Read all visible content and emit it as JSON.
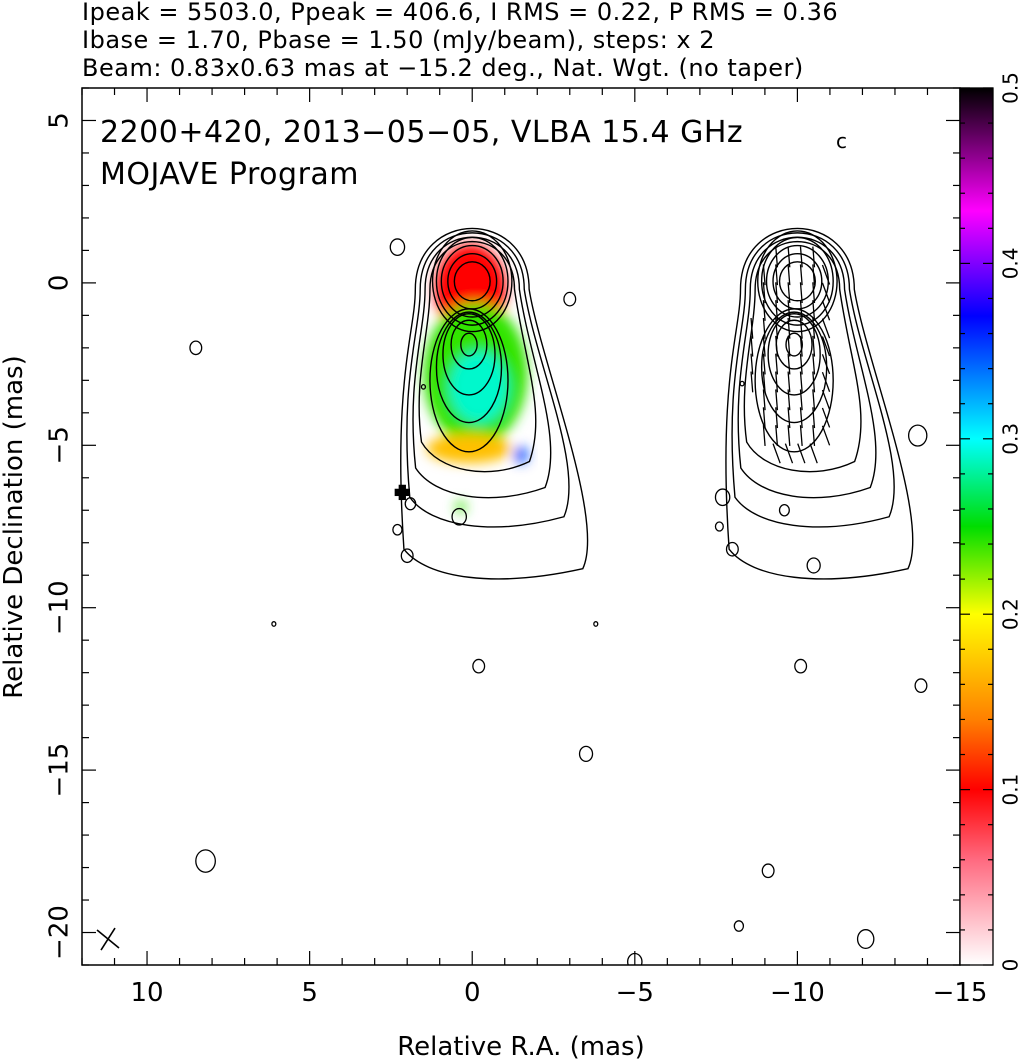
{
  "header": {
    "line1": "Ipeak = 5503.0, Ppeak = 406.6, I RMS = 0.22, P RMS = 0.36",
    "line2": "Ibase = 1.70, Pbase = 1.50 (mJy/beam), steps: x 2",
    "line3": "Beam: 0.83x0.63 mas at −15.2 deg., Nat. Wgt. (no taper)"
  },
  "plot": {
    "title_line1": "2200+420, 2013−05−05, VLBA 15.4 GHz",
    "title_suffix": "c",
    "title_line2": "MOJAVE Program"
  },
  "chart_data": {
    "type": "heatmap",
    "xlabel": "Relative R.A. (mas)",
    "ylabel": "Relative Declination (mas)",
    "xlim": [
      12,
      -15
    ],
    "ylim": [
      -21,
      6
    ],
    "x_ticks": [
      10,
      5,
      0,
      -5,
      -10,
      -15
    ],
    "x_tick_labels": [
      "10",
      "5",
      "0",
      "−5",
      "−10",
      "−15"
    ],
    "y_ticks": [
      5,
      0,
      -5,
      -10,
      -15,
      -20
    ],
    "y_tick_labels": [
      "5",
      "0",
      "−5",
      "−10",
      "−15",
      "−20"
    ],
    "colorbar": {
      "range": [
        0,
        0.5
      ],
      "ticks": [
        0,
        0.1,
        0.2,
        0.3,
        0.4,
        0.5
      ],
      "tick_labels": [
        "0",
        "0.1",
        "0.2",
        "0.3",
        "0.4",
        "0.5"
      ],
      "stops": [
        {
          "v": 0.0,
          "color": "#ffffff"
        },
        {
          "v": 0.06,
          "color": "#ff6a80"
        },
        {
          "v": 0.1,
          "color": "#ff0000"
        },
        {
          "v": 0.14,
          "color": "#ff8000"
        },
        {
          "v": 0.2,
          "color": "#ffff00"
        },
        {
          "v": 0.25,
          "color": "#00dd00"
        },
        {
          "v": 0.3,
          "color": "#00ffff"
        },
        {
          "v": 0.37,
          "color": "#0000ff"
        },
        {
          "v": 0.43,
          "color": "#ff00ff"
        },
        {
          "v": 0.5,
          "color": "#000000"
        }
      ]
    },
    "left_panel": {
      "core": [
        0,
        0
      ],
      "fracpol_regions": [
        {
          "x": 0.05,
          "y": -0.2,
          "rx": 1.1,
          "ry": 1.4,
          "value": 0.1
        },
        {
          "x": -0.1,
          "y": -2.8,
          "rx": 1.6,
          "ry": 2.2,
          "value": 0.24
        },
        {
          "x": -0.2,
          "y": -3.2,
          "rx": 0.9,
          "ry": 1.1,
          "value": 0.29
        },
        {
          "x": 0.1,
          "y": -5.1,
          "rx": 1.3,
          "ry": 0.45,
          "value": 0.17
        },
        {
          "x": -1.5,
          "y": -5.3,
          "rx": 0.2,
          "ry": 0.25,
          "value": 0.35
        },
        {
          "x": 0.35,
          "y": -6.9,
          "rx": 0.15,
          "ry": 0.18,
          "value": 0.24
        }
      ]
    },
    "right_panel": {
      "core": [
        -10,
        0
      ]
    }
  }
}
